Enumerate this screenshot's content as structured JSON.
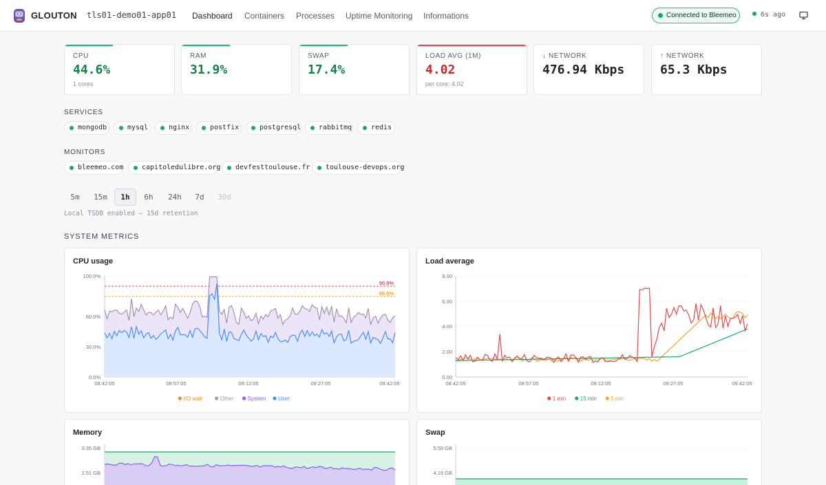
{
  "header": {
    "brand": "GLOUTON",
    "host": "tls01-demo01-app01",
    "nav": [
      "Dashboard",
      "Containers",
      "Processes",
      "Uptime Monitoring",
      "Informations"
    ],
    "active_nav": "Dashboard",
    "connection": "Connected to Bleemeo",
    "last_update": "6s ago"
  },
  "stats": [
    {
      "label": "CPU",
      "value": "44.6%",
      "sub": "1 cores",
      "color": "#14804a",
      "accent": "#1fb87a"
    },
    {
      "label": "RAM",
      "value": "31.9%",
      "sub": "",
      "color": "#14804a",
      "accent": "#1fb87a"
    },
    {
      "label": "SWAP",
      "value": "17.4%",
      "sub": "",
      "color": "#14804a",
      "accent": "#1fb87a"
    },
    {
      "label": "LOAD AVG (1M)",
      "value": "4.02",
      "sub": "per core: 4.02",
      "color": "#c22a2a",
      "accent": "#e5484d"
    },
    {
      "label": "↓ NETWORK",
      "value": "476.94 Kbps",
      "sub": "",
      "color": "#1f2328",
      "accent": ""
    },
    {
      "label": "↑ NETWORK",
      "value": "65.3 Kbps",
      "sub": "",
      "color": "#1f2328",
      "accent": ""
    }
  ],
  "services": {
    "title": "SERVICES",
    "items": [
      "mongodb",
      "mysql",
      "nginx",
      "postfix",
      "postgresql",
      "rabbitmq",
      "redis"
    ]
  },
  "monitors": {
    "title": "MONITORS",
    "items": [
      "bleemeo.com",
      "capitoledulibre.org",
      "devfesttoulouse.fr",
      "toulouse-devops.org"
    ]
  },
  "time_ranges": {
    "options": [
      "5m",
      "15m",
      "1h",
      "6h",
      "24h",
      "7d",
      "30d"
    ],
    "active": "1h",
    "disabled": [
      "30d"
    ],
    "note": "Local TSDB enabled — 15d retention"
  },
  "system_metrics_title": "SYSTEM METRICS",
  "charts": {
    "cpu": {
      "title": "CPU usage",
      "ylabels": [
        "100.0%",
        "60.0%",
        "30.0%",
        "0.0%"
      ],
      "xlabels": [
        "08:42:05",
        "08:57:05",
        "09:12:05",
        "09:27:05",
        "09:42:05"
      ],
      "thresholds": [
        {
          "label": "90.0%",
          "color": "#e5484d"
        },
        {
          "label": "80.0%",
          "color": "#f5a524"
        }
      ],
      "legend": [
        {
          "name": "I/O wait",
          "color": "#f08c1a"
        },
        {
          "name": "Other",
          "color": "#9aa0a6"
        },
        {
          "name": "System",
          "color": "#8b5cf6"
        },
        {
          "name": "User",
          "color": "#4b8df8"
        }
      ]
    },
    "load": {
      "title": "Load average",
      "ylabels": [
        "8.00",
        "6.00",
        "4.00",
        "2.00",
        "0.00"
      ],
      "xlabels": [
        "08:42:05",
        "08:57:05",
        "09:12:05",
        "09:27:05",
        "09:42:05"
      ],
      "legend": [
        {
          "name": "1 min",
          "color": "#e5484d"
        },
        {
          "name": "15 min",
          "color": "#14a86a"
        },
        {
          "name": "5 min",
          "color": "#f5a524"
        }
      ]
    },
    "memory": {
      "title": "Memory",
      "ylabels": [
        "3.35 GB",
        "2.51 GB"
      ]
    },
    "swap": {
      "title": "Swap",
      "ylabels": [
        "5.59 GB",
        "4.19 GB"
      ]
    }
  }
}
